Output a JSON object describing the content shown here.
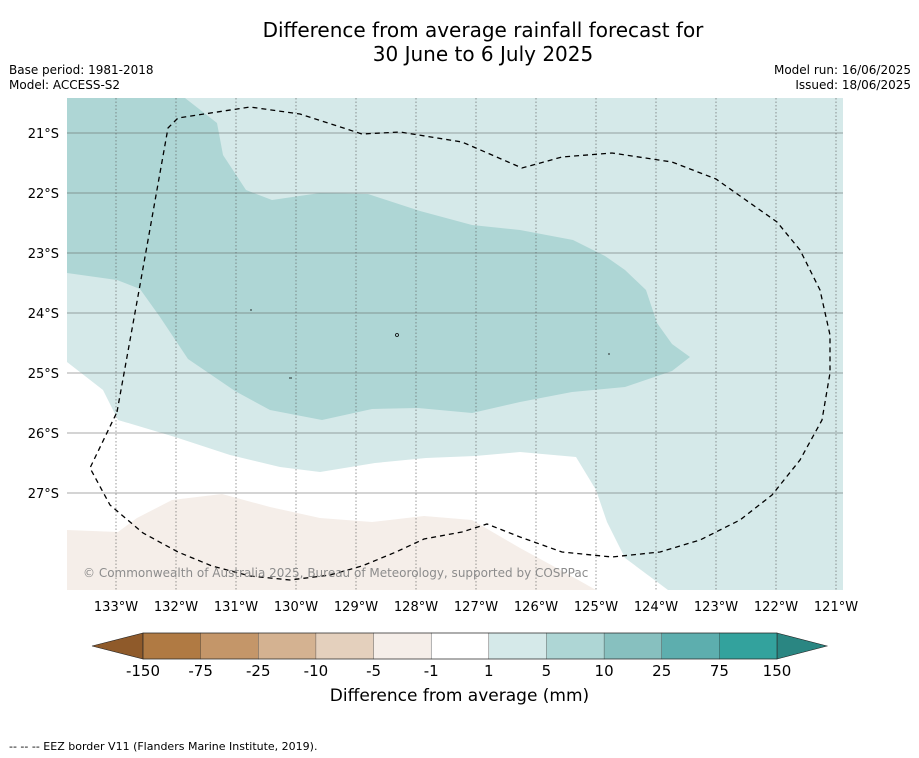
{
  "title_line1": "Difference from average rainfall forecast for",
  "title_line2": "30 June to 6 July 2025",
  "base_period": "Base period: 1981-2018",
  "model": "Model: ACCESS-S2",
  "model_run": "Model run: 16/06/2025",
  "issued": "Issued: 18/06/2025",
  "copyright": "© Commonwealth of Australia 2025, Bureau of Meteorology, supported by COSPPac",
  "colorbar_label": "Difference from average (mm)",
  "footnote": "--  --  -- EEZ border V11 (Flanders Marine Institute, 2019).",
  "lat_labels": [
    "21°S",
    "22°S",
    "23°S",
    "24°S",
    "25°S",
    "26°S",
    "27°S"
  ],
  "lon_labels": [
    "133°W",
    "132°W",
    "131°W",
    "130°W",
    "129°W",
    "128°W",
    "127°W",
    "126°W",
    "125°W",
    "124°W",
    "123°W",
    "122°W",
    "121°W"
  ],
  "colorbar": {
    "ticks": [
      "-150",
      "-75",
      "-25",
      "-10",
      "-5",
      "-1",
      "1",
      "5",
      "10",
      "25",
      "75",
      "150"
    ],
    "colors": [
      "#b07a43",
      "#c49669",
      "#d4b291",
      "#e4d0bd",
      "#f5eee9",
      "#ffffff",
      "#d5e9e9",
      "#aed6d5",
      "#87c0bf",
      "#5daeae",
      "#33a29d"
    ],
    "under_color": "#8f5a2a",
    "over_color": "#2a8682"
  },
  "fill_colors": {
    "light_teal": "#d5e9e9",
    "mid_teal": "#aed6d5",
    "light_brown": "#f5eee9"
  }
}
